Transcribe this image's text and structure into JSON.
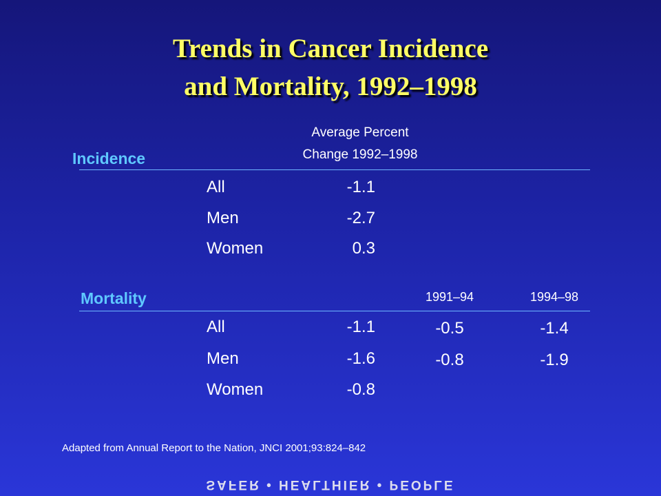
{
  "title": {
    "lines": [
      "Trends in Cancer Incidence",
      "and Mortality, 1992–1998"
    ]
  },
  "column_header": {
    "lines": [
      "Average Percent",
      "Change 1992–1998"
    ]
  },
  "incidence": {
    "label": "Incidence",
    "rows": [
      {
        "group": "All",
        "value": "-1.1"
      },
      {
        "group": "Men",
        "value": "-2.7"
      },
      {
        "group": "Women",
        "value": "0.3"
      }
    ]
  },
  "mortality": {
    "label": "Mortality",
    "period_headers": [
      "1991–94",
      "1994–98"
    ],
    "rows": [
      {
        "group": "All",
        "value": "-1.1",
        "periods": [
          "-0.5",
          "-1.4"
        ]
      },
      {
        "group": "Men",
        "value": "-1.6",
        "periods": [
          "-0.8",
          "-1.9"
        ]
      },
      {
        "group": "Women",
        "value": "-0.8",
        "periods": []
      }
    ]
  },
  "footnote": "Adapted from Annual Report to the Nation, JNCI 2001;93:824–842",
  "footer_logo": "SAFER • HEALTHIER • PEOPLE"
}
